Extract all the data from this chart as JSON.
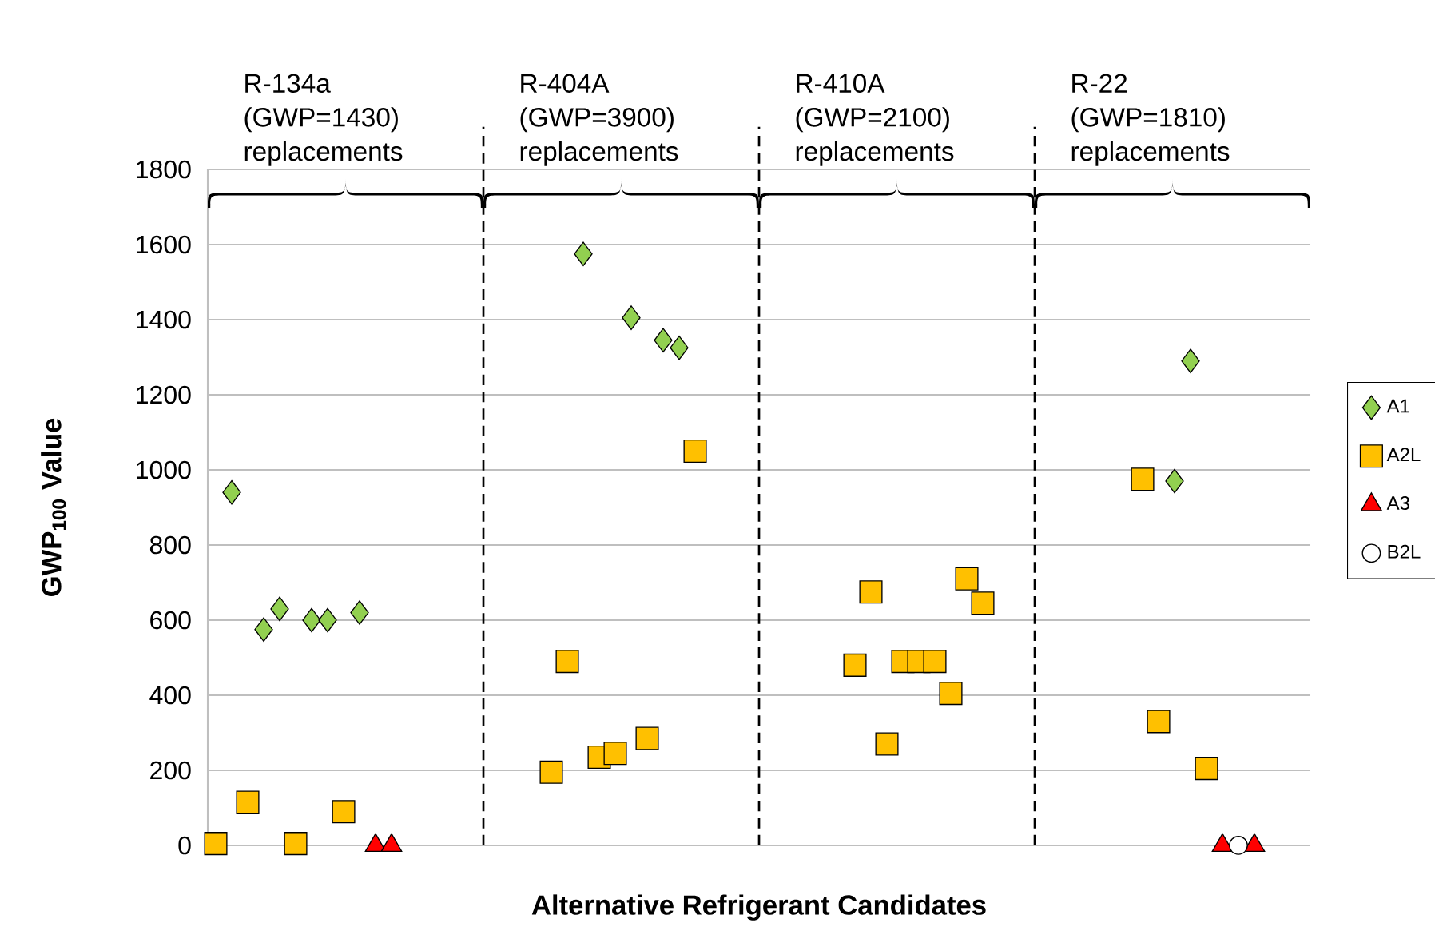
{
  "chart_data": {
    "type": "scatter",
    "xlabel": "Alternative Refrigerant Candidates",
    "ylabel": "GWP$_{100}$ Value",
    "annotations": [
      "R-134a (GWP=1430) replacements",
      "R-404A (GWP=3900) replacements",
      "R-410A (GWP=2100) replacements",
      "R-22 (GWP=1810) replacements"
    ],
    "categories": [
      null,
      null,
      null,
      null,
      null,
      null,
      null,
      null,
      null,
      null,
      null,
      null,
      null,
      null,
      null,
      null,
      null,
      null,
      null,
      null,
      null,
      null,
      null,
      null,
      null,
      null,
      null,
      null,
      null,
      null,
      null,
      null,
      null,
      null,
      null,
      null,
      null,
      null,
      null,
      null,
      null,
      null,
      null,
      null,
      null,
      null,
      null,
      null,
      null,
      null,
      null,
      null,
      null,
      null,
      null,
      null,
      null,
      null,
      null,
      null,
      null,
      null,
      null,
      null,
      null,
      null,
      null,
      null,
      null
    ],
    "ylim": [
      0,
      1800
    ],
    "yticks": [
      0,
      200,
      400,
      600,
      800,
      1000,
      1200,
      1400,
      1600,
      1800
    ],
    "tick_labels": "y",
    "grid": "y",
    "legend": "right",
    "series": [
      {
        "name": "A1",
        "color": "#92d050",
        "marker": "diamond",
        "values": [
          null,
          940,
          null,
          575,
          630,
          null,
          600,
          600,
          null,
          620,
          null,
          null,
          null,
          null,
          null,
          null,
          null,
          null,
          null,
          null,
          null,
          null,
          null,
          1575,
          null,
          null,
          1405,
          null,
          1345,
          1325,
          null,
          null,
          null,
          null,
          null,
          null,
          null,
          null,
          null,
          null,
          null,
          null,
          null,
          null,
          null,
          null,
          null,
          null,
          null,
          null,
          null,
          null,
          null,
          null,
          null,
          null,
          null,
          null,
          null,
          null,
          970,
          1290,
          null,
          null,
          null,
          null,
          null,
          null,
          null
        ]
      },
      {
        "name": "A2L",
        "color": "#ffc000",
        "marker": "square",
        "values": [
          5,
          null,
          115,
          null,
          null,
          5,
          null,
          null,
          90,
          null,
          null,
          null,
          null,
          null,
          null,
          null,
          null,
          null,
          null,
          null,
          null,
          195,
          490,
          null,
          235,
          245,
          null,
          285,
          null,
          null,
          1050,
          null,
          null,
          null,
          null,
          null,
          null,
          null,
          null,
          null,
          480,
          675,
          270,
          490,
          490,
          490,
          405,
          710,
          645,
          null,
          null,
          null,
          null,
          null,
          null,
          null,
          null,
          null,
          975,
          330,
          null,
          null,
          205,
          null,
          null,
          null,
          null,
          null,
          null
        ]
      },
      {
        "name": "A3",
        "color": "#ff0000",
        "marker": "triangle",
        "values": [
          null,
          null,
          null,
          null,
          null,
          null,
          null,
          null,
          null,
          null,
          0,
          0,
          null,
          null,
          null,
          null,
          null,
          null,
          null,
          null,
          null,
          null,
          null,
          null,
          null,
          null,
          null,
          null,
          null,
          null,
          null,
          null,
          null,
          null,
          null,
          null,
          null,
          null,
          null,
          null,
          null,
          null,
          null,
          null,
          null,
          null,
          null,
          null,
          null,
          null,
          null,
          null,
          null,
          null,
          null,
          null,
          null,
          null,
          null,
          null,
          null,
          null,
          null,
          0,
          null,
          0,
          null,
          null,
          null
        ]
      },
      {
        "name": "B2L",
        "color": "#ffffff",
        "marker": "circle",
        "values": [
          null,
          null,
          null,
          null,
          null,
          null,
          null,
          null,
          null,
          null,
          null,
          null,
          null,
          null,
          null,
          null,
          null,
          null,
          null,
          null,
          null,
          null,
          null,
          null,
          null,
          null,
          null,
          null,
          null,
          null,
          null,
          null,
          null,
          null,
          null,
          null,
          null,
          null,
          null,
          null,
          null,
          null,
          null,
          null,
          null,
          null,
          null,
          null,
          null,
          null,
          null,
          null,
          null,
          null,
          null,
          null,
          null,
          null,
          null,
          null,
          null,
          null,
          null,
          null,
          0,
          null,
          null,
          null,
          null
        ]
      }
    ]
  }
}
